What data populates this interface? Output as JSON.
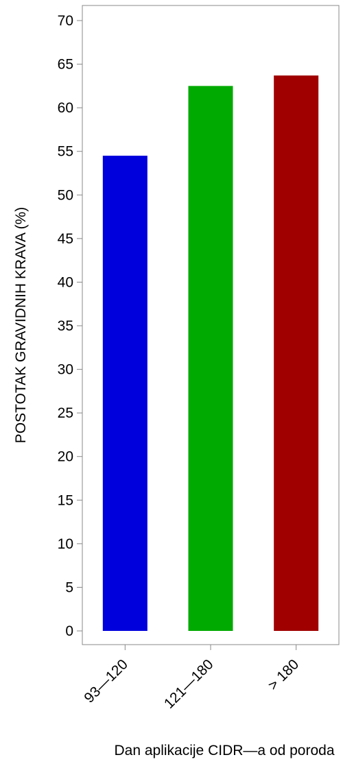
{
  "chart_data": {
    "type": "bar",
    "title": "",
    "xlabel": "Dan aplikacije CIDR—a od poroda",
    "ylabel": "POSTOTAK GRAVIDNIH KRAVA (%)",
    "ylim": [
      0,
      70
    ],
    "yticks": [
      "0",
      "5",
      "10",
      "15",
      "20",
      "25",
      "30",
      "35",
      "40",
      "45",
      "50",
      "55",
      "60",
      "65",
      "70"
    ],
    "categories": [
      "93—120",
      "121—180",
      "> 180"
    ],
    "values": [
      54.5,
      62.5,
      63.7
    ],
    "colors": [
      "#0000dd",
      "#00aa00",
      "#a00000"
    ],
    "grid": false,
    "legend": "none"
  }
}
